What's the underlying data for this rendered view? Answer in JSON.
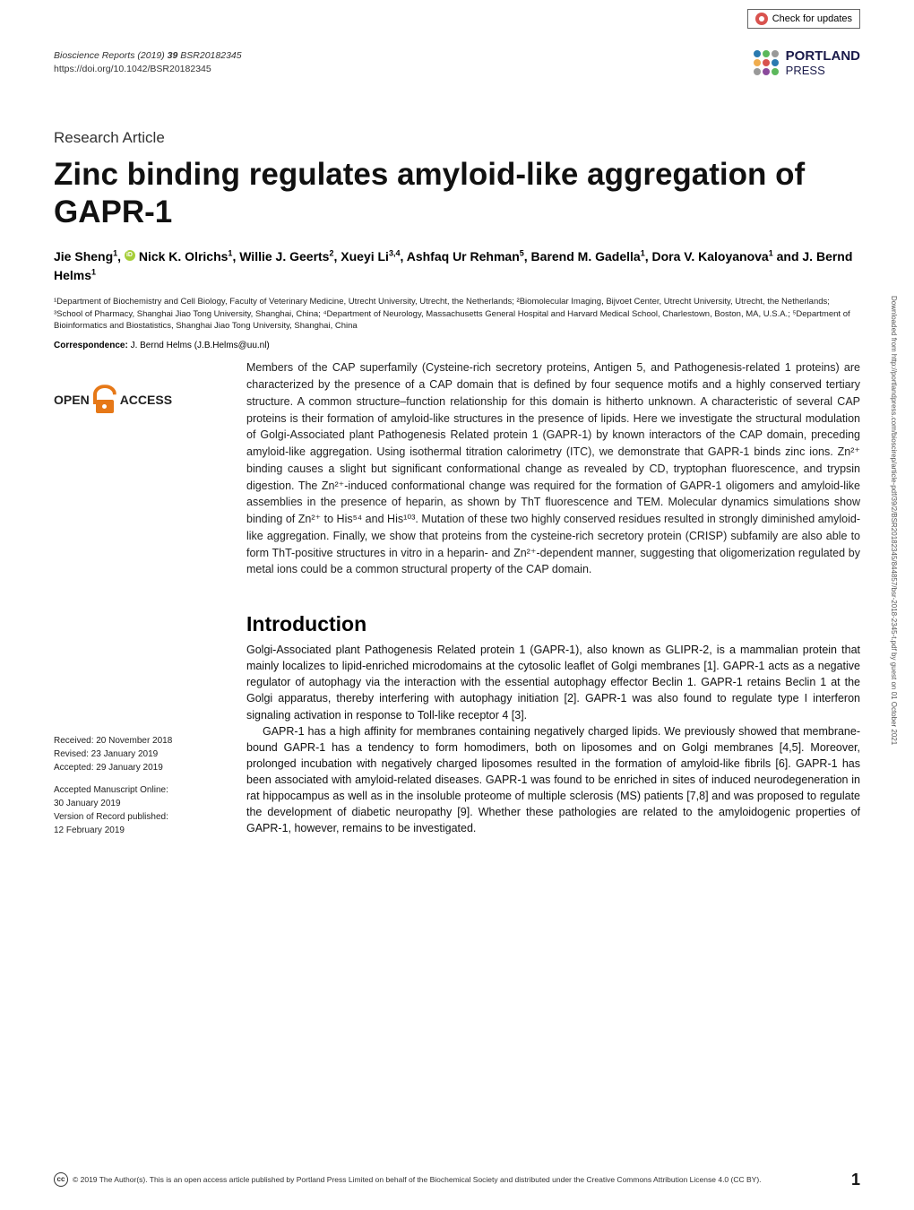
{
  "check_updates": "Check for updates",
  "journal": {
    "name": "Bioscience Reports",
    "year": "(2019)",
    "volume": "39",
    "article_id": "BSR20182345",
    "doi": "https://doi.org/10.1042/BSR20182345"
  },
  "publisher": {
    "name": "PORTLAND",
    "sub": "PRESS"
  },
  "article_type": "Research Article",
  "title": "Zinc binding regulates amyloid-like aggregation of GAPR-1",
  "authors_html": "Jie Sheng<sup>1</sup>, [ORCID] Nick K. Olrichs<sup>1</sup>, Willie J. Geerts<sup>2</sup>, Xueyi Li<sup>3,4</sup>, Ashfaq Ur Rehman<sup>5</sup>, Barend M. Gadella<sup>1</sup>, Dora V. Kaloyanova<sup>1</sup> and J. Bernd Helms<sup>1</sup>",
  "affiliations": "¹Department of Biochemistry and Cell Biology, Faculty of Veterinary Medicine, Utrecht University, Utrecht, the Netherlands; ²Biomolecular Imaging, Bijvoet Center, Utrecht University, Utrecht, the Netherlands; ³School of Pharmacy, Shanghai Jiao Tong University, Shanghai, China; ⁴Department of Neurology, Massachusetts General Hospital and Harvard Medical School, Charlestown, Boston, MA, U.S.A.; ⁵Department of Bioinformatics and Biostatistics, Shanghai Jiao Tong University, Shanghai, China",
  "correspondence": {
    "label": "Correspondence:",
    "text": " J. Bernd Helms (J.B.Helms@uu.nl)"
  },
  "oa": {
    "open": "OPEN",
    "access": "ACCESS"
  },
  "abstract": "Members of the CAP superfamily (Cysteine-rich secretory proteins, Antigen 5, and Pathogenesis-related 1 proteins) are characterized by the presence of a CAP domain that is defined by four sequence motifs and a highly conserved tertiary structure. A common structure–function relationship for this domain is hitherto unknown. A characteristic of several CAP proteins is their formation of amyloid-like structures in the presence of lipids. Here we investigate the structural modulation of Golgi-Associated plant Pathogenesis Related protein 1 (GAPR-1) by known interactors of the CAP domain, preceding amyloid-like aggregation. Using isothermal titration calorimetry (ITC), we demonstrate that GAPR-1 binds zinc ions. Zn²⁺ binding causes a slight but significant conformational change as revealed by CD, tryptophan fluorescence, and trypsin digestion. The Zn²⁺-induced conformational change was required for the formation of GAPR-1 oligomers and amyloid-like assemblies in the presence of heparin, as shown by ThT fluorescence and TEM. Molecular dynamics simulations show binding of Zn²⁺ to His⁵⁴ and His¹⁰³. Mutation of these two highly conserved residues resulted in strongly diminished amyloid-like aggregation. Finally, we show that proteins from the cysteine-rich secretory protein (CRISP) subfamily are also able to form ThT-positive structures in vitro in a heparin- and Zn²⁺-dependent manner, suggesting that oligomerization regulated by metal ions could be a common structural property of the CAP domain.",
  "intro_heading": "Introduction",
  "intro_p1": "Golgi-Associated plant Pathogenesis Related protein 1 (GAPR-1), also known as GLIPR-2, is a mammalian protein that mainly localizes to lipid-enriched microdomains at the cytosolic leaflet of Golgi membranes [1]. GAPR-1 acts as a negative regulator of autophagy via the interaction with the essential autophagy effector Beclin 1. GAPR-1 retains Beclin 1 at the Golgi apparatus, thereby interfering with autophagy initiation [2]. GAPR-1 was also found to regulate type I interferon signaling activation in response to Toll-like receptor 4 [3].",
  "intro_p2": "GAPR-1 has a high affinity for membranes containing negatively charged lipids. We previously showed that membrane-bound GAPR-1 has a tendency to form homodimers, both on liposomes and on Golgi membranes [4,5]. Moreover, prolonged incubation with negatively charged liposomes resulted in the formation of amyloid-like fibrils [6]. GAPR-1 has been associated with amyloid-related diseases. GAPR-1 was found to be enriched in sites of induced neurodegeneration in rat hippocampus as well as in the insoluble proteome of multiple sclerosis (MS) patients [7,8] and was proposed to regulate the development of diabetic neuropathy [9]. Whether these pathologies are related to the amyloidogenic properties of GAPR-1, however, remains to be investigated.",
  "dates": {
    "received": "Received: 20 November 2018",
    "revised": "Revised: 23 January 2019",
    "accepted": "Accepted: 29 January 2019",
    "amo_label": "Accepted Manuscript Online:",
    "amo_date": "30 January 2019",
    "vor_label": "Version of Record published:",
    "vor_date": "12 February 2019"
  },
  "side_text": "Downloaded from http://portlandpress.com/bioscirep/article-pdf/39/2/BSR20182345/844857/bsr-2018-2345-t.pdf by guest on 01 October 2021",
  "footer": {
    "cc": "cc",
    "text": "© 2019 The Author(s). This is an open access article published by Portland Press Limited on behalf of the Biochemical Society and distributed under the Creative Commons Attribution License 4.0 (CC BY).",
    "page_number": "1"
  },
  "colors": {
    "orange": "#e67817",
    "text": "#111111",
    "gray": "#555555"
  }
}
